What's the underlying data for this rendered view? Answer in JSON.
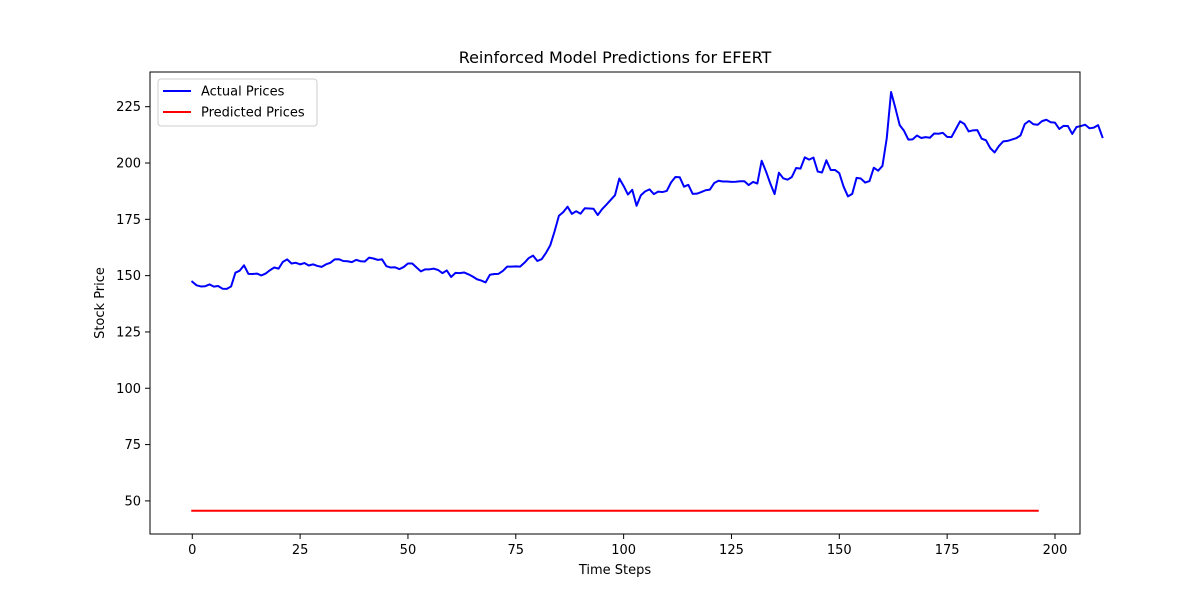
{
  "chart_data": {
    "type": "line",
    "title": "Reinforced Model Predictions for EFERT",
    "xlabel": "Time Steps",
    "ylabel": "Stock Price",
    "xlim": [
      -9.8,
      205.8
    ],
    "ylim": [
      35.3,
      240.4
    ],
    "xticks": [
      0,
      25,
      50,
      75,
      100,
      125,
      150,
      175,
      200
    ],
    "yticks": [
      50,
      75,
      100,
      125,
      150,
      175,
      200,
      225
    ],
    "legend_position": "upper-left",
    "grid": false,
    "series": [
      {
        "name": "Actual Prices",
        "color": "#0000ff",
        "x_start": 0,
        "x_step": 1,
        "values": [
          147.3,
          145.7,
          145.2,
          145.3,
          146.1,
          145.1,
          145.4,
          144.2,
          144.1,
          145.2,
          151.3,
          152.2,
          154.6,
          150.8,
          150.7,
          150.9,
          150.1,
          150.9,
          152.4,
          153.6,
          153.1,
          156.1,
          157.2,
          155.4,
          155.7,
          155.0,
          155.6,
          154.5,
          155.0,
          154.3,
          153.9,
          155.0,
          155.7,
          157.2,
          157.3,
          156.5,
          156.4,
          156.0,
          157.0,
          156.4,
          156.3,
          158.0,
          157.6,
          157.0,
          157.2,
          154.2,
          153.6,
          153.7,
          152.9,
          153.8,
          155.4,
          155.4,
          153.6,
          151.9,
          152.8,
          152.8,
          153.1,
          152.5,
          151.1,
          152.3,
          149.4,
          151.2,
          151.1,
          151.4,
          150.6,
          149.6,
          148.4,
          147.8,
          147.0,
          150.4,
          150.7,
          150.8,
          152.1,
          154.0,
          154.0,
          154.1,
          154.0,
          155.7,
          157.8,
          158.9,
          156.5,
          157.3,
          160.1,
          163.5,
          169.7,
          176.6,
          178.2,
          180.6,
          177.4,
          178.6,
          177.5,
          179.9,
          179.8,
          179.7,
          176.9,
          179.5,
          181.5,
          183.6,
          185.7,
          193.1,
          189.8,
          186.0,
          188.1,
          181.0,
          185.7,
          187.4,
          188.3,
          186.2,
          187.3,
          187.1,
          187.6,
          191.4,
          193.8,
          193.7,
          189.5,
          190.3,
          186.3,
          186.4,
          187.1,
          187.9,
          188.2,
          191.1,
          192.1,
          191.8,
          191.8,
          191.6,
          191.7,
          191.9,
          191.9,
          190.2,
          191.6,
          190.9,
          201.0,
          196.3,
          190.9,
          186.2,
          195.7,
          193.2,
          192.6,
          193.8,
          197.8,
          197.5,
          202.5,
          201.5,
          202.4,
          196.2,
          195.8,
          201.2,
          196.9,
          196.9,
          195.5,
          189.5,
          185.2,
          186.3,
          193.4,
          193.1,
          191.3,
          192.0,
          197.9,
          196.6,
          198.7,
          211.0,
          231.5,
          224.4,
          216.8,
          214.3,
          210.4,
          210.5,
          212.2,
          211.1,
          211.5,
          211.2,
          213.1,
          213.0,
          213.4,
          211.6,
          211.5,
          215.0,
          218.5,
          217.3,
          214.0,
          214.5,
          214.6,
          210.8,
          210.1,
          206.6,
          204.7,
          207.5,
          209.6,
          209.8,
          210.4,
          211.0,
          212.2,
          217.3,
          218.7,
          217.2,
          217.0,
          218.6,
          219.2,
          218.1,
          217.9,
          215.1,
          216.5,
          216.4,
          212.9,
          216.0,
          216.4,
          217.0,
          215.4,
          215.7,
          216.8,
          211.5
        ]
      },
      {
        "name": "Predicted Prices",
        "color": "#ff0000",
        "x_start": 0,
        "x_step": 1,
        "count": 197,
        "constant_value": 45.6
      }
    ]
  }
}
